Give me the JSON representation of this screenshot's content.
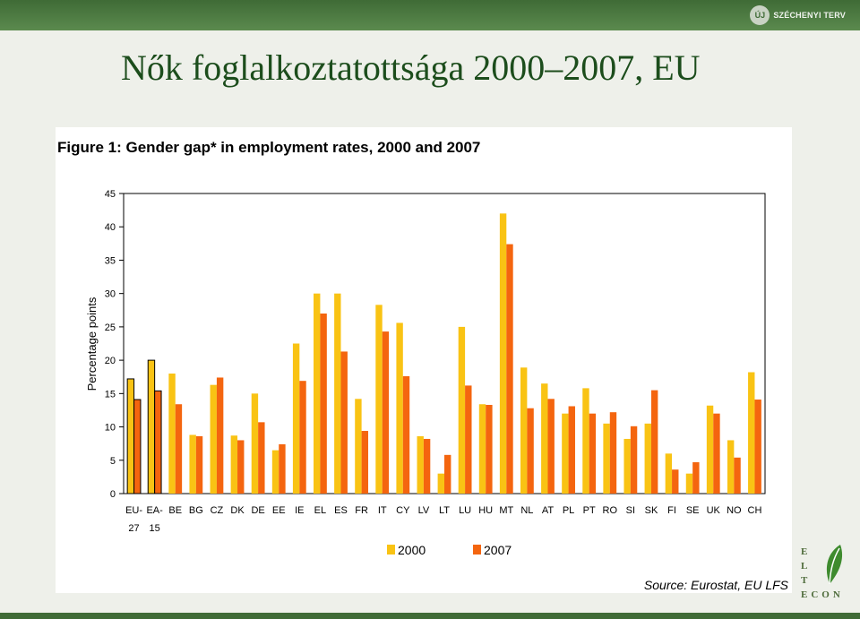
{
  "header": {
    "logo_text": "SZÉCHENYI TERV",
    "logo_mark": "ÚJ"
  },
  "slide": {
    "title": "Nők foglalkoztatottsága 2000–2007, EU"
  },
  "footer_logo": {
    "letters": [
      "E",
      "L",
      "T"
    ],
    "bottom": "ECON"
  },
  "chart_data": {
    "type": "bar",
    "title": "Figure 1: Gender gap* in employment rates, 2000 and 2007",
    "xlabel": "",
    "ylabel": "Percentage points",
    "ylim": [
      0,
      45
    ],
    "yticks": [
      0,
      5,
      10,
      15,
      20,
      25,
      30,
      35,
      40,
      45
    ],
    "grid": false,
    "legend_position": "bottom",
    "source": "Source: Eurostat, EU LFS",
    "categories": [
      "EU-27",
      "EA-15",
      "BE",
      "BG",
      "CZ",
      "DK",
      "DE",
      "EE",
      "IE",
      "EL",
      "ES",
      "FR",
      "IT",
      "CY",
      "LV",
      "LT",
      "LU",
      "HU",
      "MT",
      "NL",
      "AT",
      "PL",
      "PT",
      "RO",
      "SI",
      "SK",
      "FI",
      "SE",
      "UK",
      "NO",
      "CH"
    ],
    "category_labels": [
      [
        "EU-",
        "27"
      ],
      [
        "EA-",
        "15"
      ],
      [
        "BE"
      ],
      [
        "BG"
      ],
      [
        "CZ"
      ],
      [
        "DK"
      ],
      [
        "DE"
      ],
      [
        "EE"
      ],
      [
        "IE"
      ],
      [
        "EL"
      ],
      [
        "ES"
      ],
      [
        "FR"
      ],
      [
        "IT"
      ],
      [
        "CY"
      ],
      [
        "LV"
      ],
      [
        "LT"
      ],
      [
        "LU"
      ],
      [
        "HU"
      ],
      [
        "MT"
      ],
      [
        "NL"
      ],
      [
        "AT"
      ],
      [
        "PL"
      ],
      [
        "PT"
      ],
      [
        "RO"
      ],
      [
        "SI"
      ],
      [
        "SK"
      ],
      [
        "FI"
      ],
      [
        "SE"
      ],
      [
        "UK"
      ],
      [
        "NO"
      ],
      [
        "CH"
      ]
    ],
    "outlined_categories": [
      "EU-27",
      "EA-15"
    ],
    "series": [
      {
        "name": "2000",
        "color": "#f9c314",
        "values": [
          17.2,
          20.0,
          18.0,
          8.8,
          16.3,
          8.7,
          15.0,
          6.5,
          22.5,
          30.0,
          30.0,
          14.2,
          28.3,
          25.6,
          8.6,
          3.0,
          25.0,
          13.4,
          42.0,
          18.9,
          16.5,
          12.0,
          15.8,
          10.5,
          8.2,
          10.5,
          6.0,
          3.0,
          13.2,
          8.0,
          18.2
        ]
      },
      {
        "name": "2007",
        "color": "#f4650f",
        "values": [
          14.1,
          15.4,
          13.4,
          8.6,
          17.4,
          8.0,
          10.7,
          7.4,
          16.9,
          27.0,
          21.3,
          9.4,
          24.3,
          17.6,
          8.2,
          5.8,
          16.2,
          13.3,
          37.4,
          12.8,
          14.2,
          13.1,
          12.0,
          12.2,
          10.1,
          15.5,
          3.6,
          4.7,
          12.0,
          5.4,
          14.1
        ]
      }
    ]
  }
}
